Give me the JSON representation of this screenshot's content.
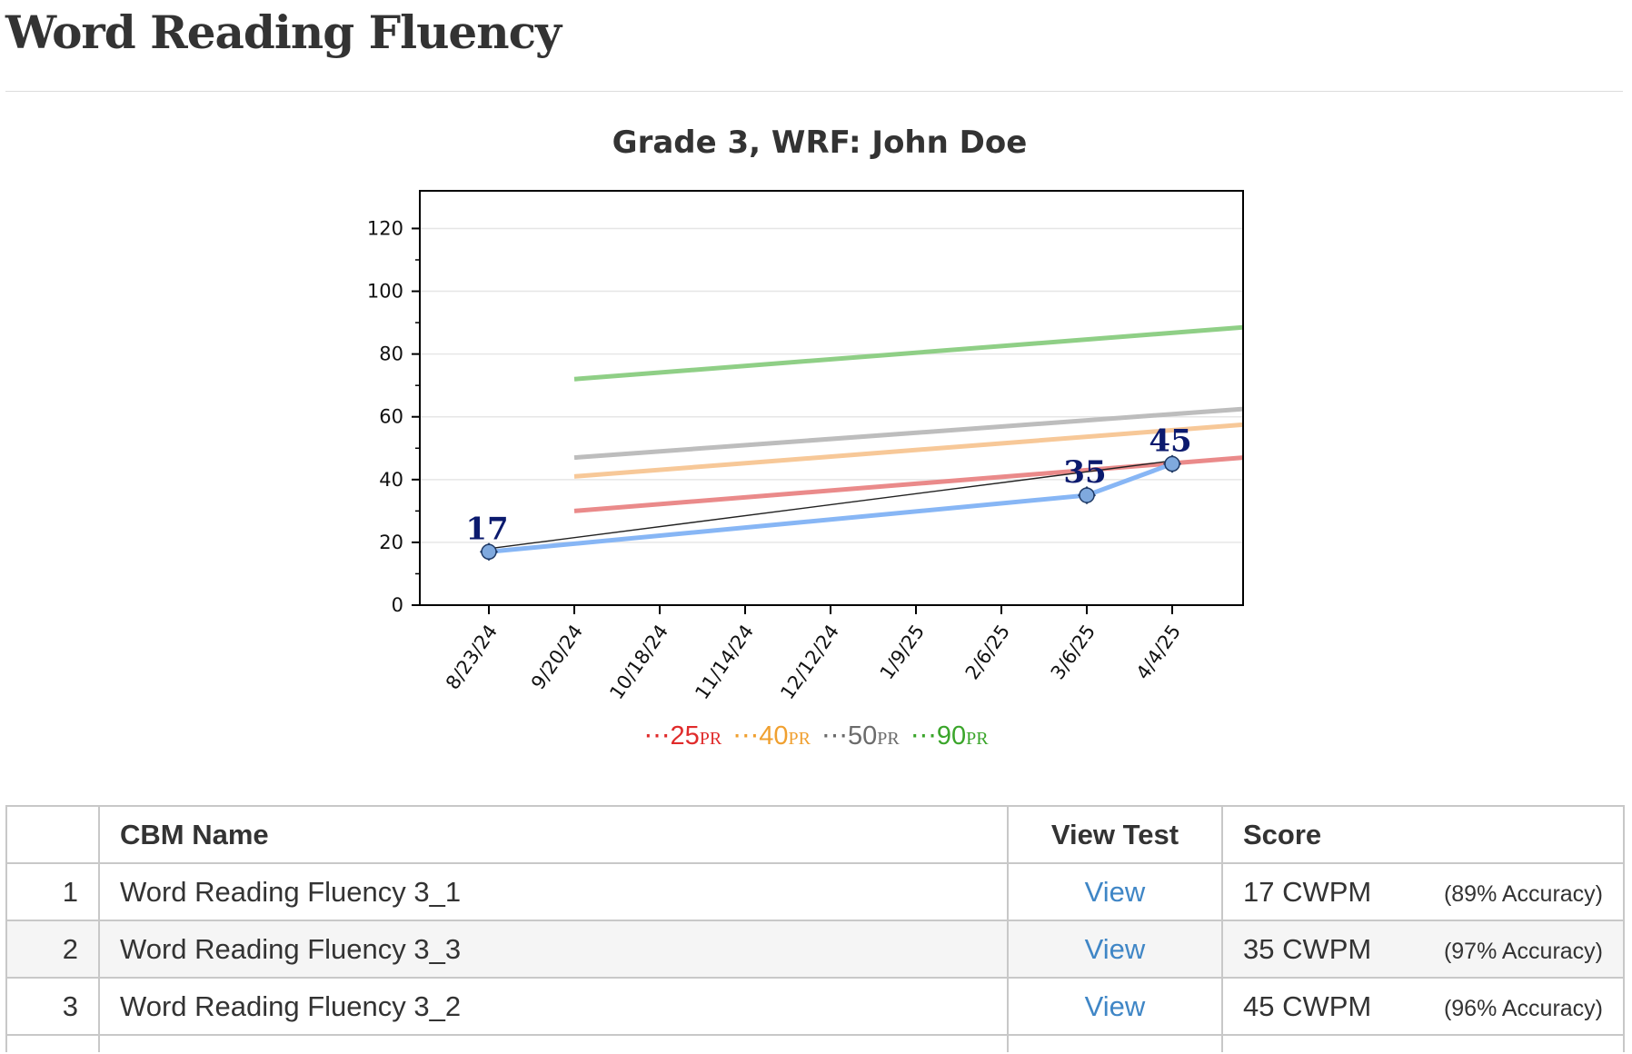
{
  "page": {
    "title": "Word Reading Fluency"
  },
  "chart_data": {
    "type": "line",
    "title": "Grade 3, WRF: John Doe",
    "x_ticks": [
      "8/23/24",
      "9/20/24",
      "10/18/24",
      "11/14/24",
      "12/12/24",
      "1/9/25",
      "2/6/25",
      "3/6/25",
      "4/4/25"
    ],
    "y_ticks": [
      0,
      20,
      40,
      60,
      80,
      100,
      120
    ],
    "ylim": [
      0,
      132
    ],
    "grid": "horizontal",
    "student": {
      "points": [
        {
          "x": "8/23/24",
          "y": 17,
          "label": "17"
        },
        {
          "x": "3/6/25",
          "y": 35,
          "label": "35"
        },
        {
          "x": "4/4/25",
          "y": 45,
          "label": "45"
        }
      ],
      "color": "#87b6f5",
      "marker_color": "#7fa9de"
    },
    "trend": {
      "from": {
        "x": "8/23/24",
        "y": 18
      },
      "to": {
        "x": "4/4/25",
        "y": 46
      },
      "color": "#222222"
    },
    "benchmarks": [
      {
        "name": "25",
        "color": "#ea8a8a",
        "start": {
          "x": "9/20/24",
          "y": 30
        },
        "end_y": 47
      },
      {
        "name": "40",
        "color": "#f7c898",
        "start": {
          "x": "9/20/24",
          "y": 41
        },
        "end_y": 57.5
      },
      {
        "name": "50",
        "color": "#bdbdbd",
        "start": {
          "x": "9/20/24",
          "y": 47
        },
        "end_y": 62.5
      },
      {
        "name": "90",
        "color": "#8fcf86",
        "start": {
          "x": "9/20/24",
          "y": 72
        },
        "end_y": 88.5
      }
    ]
  },
  "legend": [
    {
      "dots": "⋯",
      "value": "25",
      "suffix": "PR",
      "color": "#e02b2b"
    },
    {
      "dots": "⋯",
      "value": "40",
      "suffix": "PR",
      "color": "#f0a030"
    },
    {
      "dots": "⋯",
      "value": "50",
      "suffix": "PR",
      "color": "#6b6b6b"
    },
    {
      "dots": "⋯",
      "value": "90",
      "suffix": "PR",
      "color": "#3aa52a"
    }
  ],
  "table": {
    "headers": {
      "num": "",
      "name": "CBM Name",
      "view": "View Test",
      "score": "Score"
    },
    "rows": [
      {
        "num": "1",
        "name": "Word Reading Fluency 3_1",
        "view": "View",
        "score": "17 CWPM",
        "accuracy": "(89% Accuracy)"
      },
      {
        "num": "2",
        "name": "Word Reading Fluency 3_3",
        "view": "View",
        "score": "35 CWPM",
        "accuracy": "(97% Accuracy)"
      },
      {
        "num": "3",
        "name": "Word Reading Fluency 3_2",
        "view": "View",
        "score": "45 CWPM",
        "accuracy": "(96% Accuracy)"
      }
    ]
  }
}
